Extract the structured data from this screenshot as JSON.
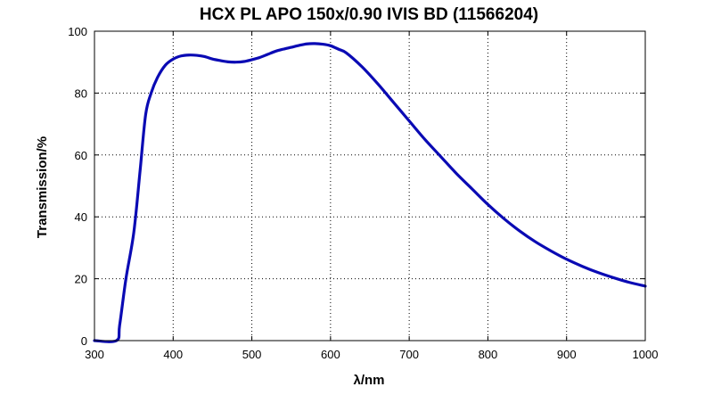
{
  "chart_data": {
    "type": "line",
    "title": "HCX PL APO 150x/0.90 IVIS BD (11566204)",
    "xlabel": "λ/nm",
    "ylabel": "Transmission/%",
    "xlim": [
      300,
      1000
    ],
    "ylim": [
      0,
      100
    ],
    "x_ticks": [
      300,
      400,
      500,
      600,
      700,
      800,
      900,
      1000
    ],
    "y_ticks": [
      0,
      20,
      40,
      60,
      80,
      100
    ],
    "grid": true,
    "legend": "none",
    "series_color": "#0a0ab4",
    "series": [
      {
        "x": [
          300,
          328,
          332,
          340,
          350,
          358,
          365,
          372,
          380,
          390,
          400,
          410,
          420,
          430,
          440,
          450,
          460,
          470,
          480,
          490,
          500,
          510,
          520,
          530,
          540,
          550,
          560,
          570,
          580,
          590,
          600,
          610,
          620,
          640,
          660,
          680,
          700,
          720,
          740,
          760,
          780,
          800,
          820,
          840,
          860,
          880,
          900,
          920,
          940,
          960,
          980,
          1000
        ],
        "y": [
          0,
          0,
          5,
          20,
          35,
          55,
          73,
          80,
          85,
          89,
          91,
          92,
          92.3,
          92.2,
          91.8,
          91,
          90.5,
          90.1,
          90,
          90.2,
          90.8,
          91.5,
          92.5,
          93.5,
          94.2,
          94.8,
          95.4,
          95.9,
          96,
          95.8,
          95.3,
          94.2,
          93,
          88.5,
          83,
          77,
          71,
          65,
          59.5,
          54,
          49,
          44,
          39.5,
          35.5,
          32,
          29,
          26.3,
          24,
          22,
          20.3,
          18.8,
          17.6
        ]
      }
    ]
  }
}
